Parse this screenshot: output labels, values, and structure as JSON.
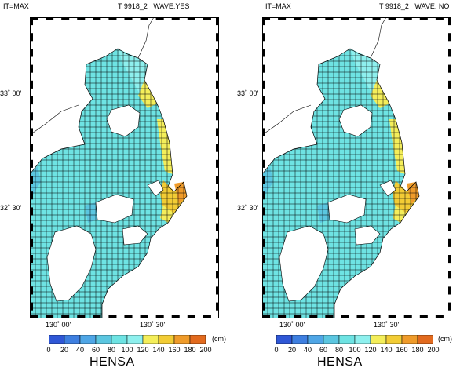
{
  "colors": {
    "scale": [
      "#2f57d6",
      "#3e7fe0",
      "#4fa6e6",
      "#5bc6e0",
      "#6ee3e3",
      "#8ef0ee",
      "#f4ee5a",
      "#f2cc35",
      "#ef9b2a",
      "#e26a1e"
    ],
    "sea": "#6ee3e3",
    "grid": "#000000"
  },
  "panels": [
    {
      "it_label": "IT=MAX",
      "case_label": "T 9918_2",
      "wave_label": "WAVE:YES",
      "lat_labels": [
        "33˚ 00'",
        "32˚ 30'"
      ],
      "lon_labels": [
        "130˚ 00'",
        "130˚ 30'"
      ],
      "colorbar": {
        "unit": "(cm)",
        "ticks": [
          "0",
          "20",
          "40",
          "60",
          "80",
          "100",
          "120",
          "140",
          "160",
          "180",
          "200"
        ],
        "title": "HENSA"
      }
    },
    {
      "it_label": "IT=MAX",
      "case_label": "T 9918_2",
      "wave_label": "WAVE: NO",
      "lat_labels": [
        "33˚ 00'",
        "32˚ 30'"
      ],
      "lon_labels": [
        "130˚ 00'",
        "130˚ 30'"
      ],
      "colorbar": {
        "unit": "(cm)",
        "ticks": [
          "0",
          "20",
          "40",
          "60",
          "80",
          "100",
          "120",
          "140",
          "160",
          "180",
          "200"
        ],
        "title": "HENSA"
      }
    }
  ]
}
